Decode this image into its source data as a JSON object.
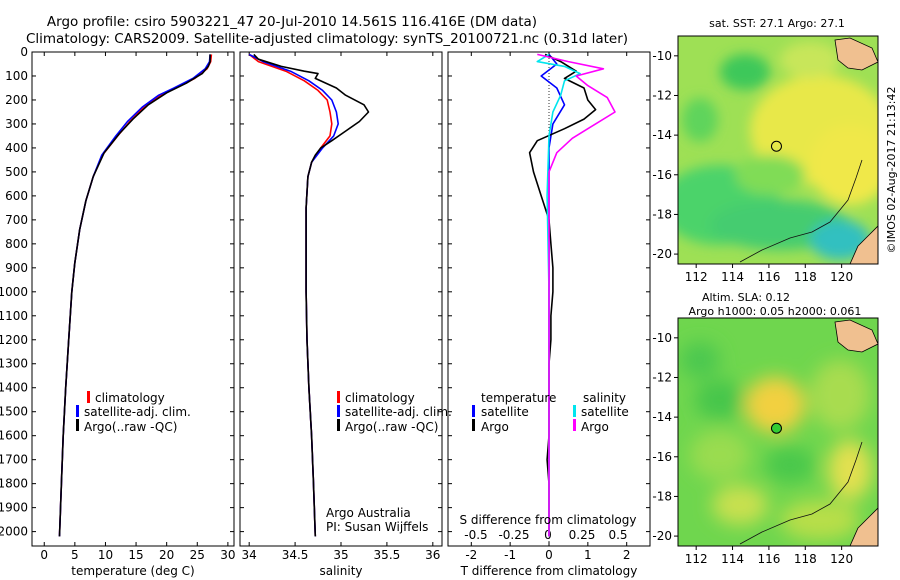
{
  "header": {
    "line1": "Argo profile: csiro 5903221_47 20-Jul-2010 14.561S 116.416E (DM data)",
    "line2": "Climatology: CARS2009. Satellite-adjusted climatology: synTS_20100721.nc (0.31d later)"
  },
  "depth_ticks": [
    0,
    100,
    200,
    300,
    400,
    500,
    600,
    700,
    800,
    900,
    1000,
    1100,
    1200,
    1300,
    1400,
    1500,
    1600,
    1700,
    1800,
    1900,
    2000
  ],
  "colors": {
    "climatology": "#ff0000",
    "satellite_adj": "#0000ff",
    "argo": "#000000",
    "satellite_s": "#00e5ee",
    "argo_s": "#ff00ff"
  },
  "chart_data": [
    {
      "type": "line",
      "id": "temperature",
      "xlabel": "temperature (deg C)",
      "ylabel": "",
      "xlim": [
        -2,
        31
      ],
      "ylim": [
        2060,
        0
      ],
      "xticks": [
        0,
        5,
        10,
        15,
        20,
        25,
        30
      ],
      "legend": [
        "climatology",
        "satellite-adj. clim.",
        "Argo(..raw -QC)"
      ],
      "series": [
        {
          "name": "climatology",
          "color": "#ff0000",
          "points": [
            [
              27.3,
              10
            ],
            [
              27.2,
              40
            ],
            [
              26.6,
              70
            ],
            [
              24.6,
              110
            ],
            [
              21.5,
              150
            ],
            [
              19.0,
              180
            ],
            [
              16.3,
              230
            ],
            [
              14.0,
              290
            ],
            [
              12.0,
              350
            ],
            [
              9.5,
              430
            ],
            [
              8.0,
              520
            ],
            [
              6.8,
              620
            ],
            [
              5.8,
              740
            ],
            [
              5.0,
              880
            ],
            [
              4.5,
              1000
            ],
            [
              4.0,
              1200
            ],
            [
              3.5,
              1400
            ],
            [
              3.1,
              1600
            ],
            [
              2.8,
              1800
            ],
            [
              2.5,
              2020
            ]
          ]
        },
        {
          "name": "satellite-adj. clim.",
          "color": "#0000ff",
          "points": [
            [
              27.1,
              10
            ],
            [
              27.0,
              40
            ],
            [
              26.3,
              70
            ],
            [
              24.3,
              110
            ],
            [
              21.2,
              150
            ],
            [
              18.7,
              180
            ],
            [
              16.0,
              230
            ],
            [
              13.6,
              290
            ],
            [
              11.7,
              350
            ],
            [
              9.4,
              430
            ],
            [
              8.0,
              520
            ],
            [
              6.8,
              620
            ],
            [
              5.8,
              740
            ],
            [
              5.0,
              880
            ],
            [
              4.5,
              1000
            ],
            [
              4.0,
              1200
            ],
            [
              3.5,
              1400
            ],
            [
              3.1,
              1600
            ],
            [
              2.8,
              1800
            ],
            [
              2.5,
              2020
            ]
          ]
        },
        {
          "name": "Argo(..raw -QC)",
          "color": "#000000",
          "points": [
            [
              27.1,
              10
            ],
            [
              27.1,
              40
            ],
            [
              26.8,
              60
            ],
            [
              25.8,
              90
            ],
            [
              23.2,
              130
            ],
            [
              20.0,
              170
            ],
            [
              17.0,
              220
            ],
            [
              14.5,
              280
            ],
            [
              12.3,
              340
            ],
            [
              9.8,
              420
            ],
            [
              8.0,
              520
            ],
            [
              6.8,
              620
            ],
            [
              5.8,
              740
            ],
            [
              5.0,
              880
            ],
            [
              4.5,
              1000
            ],
            [
              4.0,
              1200
            ],
            [
              3.5,
              1400
            ],
            [
              3.1,
              1600
            ],
            [
              2.8,
              1800
            ],
            [
              2.5,
              2020
            ]
          ]
        }
      ]
    },
    {
      "type": "line",
      "id": "salinity",
      "xlabel": "salinity",
      "xlim": [
        33.9,
        36.1
      ],
      "ylim": [
        2060,
        0
      ],
      "xticks": [
        34,
        34.5,
        35,
        35.5,
        36
      ],
      "legend": [
        "climatology",
        "satellite-adj. clim.",
        "Argo(..raw -QC)"
      ],
      "annotation": [
        "Argo Australia",
        "PI: Susan Wijffels"
      ],
      "series": [
        {
          "name": "climatology",
          "color": "#ff0000",
          "points": [
            [
              34.0,
              10
            ],
            [
              34.1,
              40
            ],
            [
              34.4,
              80
            ],
            [
              34.6,
              120
            ],
            [
              34.75,
              160
            ],
            [
              34.85,
              200
            ],
            [
              34.88,
              250
            ],
            [
              34.9,
              300
            ],
            [
              34.88,
              350
            ],
            [
              34.78,
              400
            ],
            [
              34.68,
              460
            ],
            [
              34.64,
              520
            ],
            [
              34.62,
              650
            ],
            [
              34.62,
              800
            ],
            [
              34.62,
              1000
            ],
            [
              34.63,
              1200
            ],
            [
              34.65,
              1400
            ],
            [
              34.68,
              1600
            ],
            [
              34.7,
              1800
            ],
            [
              34.72,
              2020
            ]
          ]
        },
        {
          "name": "satellite-adj. clim.",
          "color": "#0000ff",
          "points": [
            [
              34.0,
              10
            ],
            [
              34.15,
              40
            ],
            [
              34.45,
              80
            ],
            [
              34.65,
              120
            ],
            [
              34.8,
              160
            ],
            [
              34.9,
              200
            ],
            [
              34.95,
              250
            ],
            [
              34.97,
              300
            ],
            [
              34.92,
              350
            ],
            [
              34.8,
              400
            ],
            [
              34.68,
              460
            ],
            [
              34.64,
              520
            ],
            [
              34.62,
              650
            ],
            [
              34.62,
              800
            ],
            [
              34.62,
              1000
            ],
            [
              34.63,
              1200
            ],
            [
              34.65,
              1400
            ],
            [
              34.68,
              1600
            ],
            [
              34.7,
              1800
            ],
            [
              34.72,
              2020
            ]
          ]
        },
        {
          "name": "Argo(..raw -QC)",
          "color": "#000000",
          "points": [
            [
              34.05,
              10
            ],
            [
              34.1,
              30
            ],
            [
              34.35,
              60
            ],
            [
              34.6,
              80
            ],
            [
              34.75,
              90
            ],
            [
              34.72,
              110
            ],
            [
              34.95,
              150
            ],
            [
              35.05,
              180
            ],
            [
              35.25,
              220
            ],
            [
              35.3,
              250
            ],
            [
              35.2,
              290
            ],
            [
              35.05,
              330
            ],
            [
              34.9,
              370
            ],
            [
              34.78,
              400
            ],
            [
              34.72,
              430
            ],
            [
              34.68,
              460
            ],
            [
              34.64,
              520
            ],
            [
              34.62,
              650
            ],
            [
              34.62,
              800
            ],
            [
              34.62,
              1000
            ],
            [
              34.63,
              1200
            ],
            [
              34.65,
              1400
            ],
            [
              34.68,
              1600
            ],
            [
              34.7,
              1800
            ],
            [
              34.72,
              2020
            ]
          ]
        }
      ]
    },
    {
      "type": "line",
      "id": "difference",
      "xlabel": "T difference from climatology",
      "xlabel_top": "S difference from climatology",
      "xlim": [
        -2.6,
        2.6
      ],
      "ylim": [
        2060,
        0
      ],
      "xticks": [
        -2,
        -1,
        0,
        1,
        2
      ],
      "xticks_s": [
        "-0.5",
        "-0.25",
        "0",
        "0.25",
        "0.5"
      ],
      "legend": {
        "temperature_title": "temperature",
        "salinity_title": "salinity",
        "satellite": "satellite",
        "argo": "Argo"
      },
      "series": [
        {
          "name": "temperature satellite",
          "color": "#0000ff",
          "points": [
            [
              0,
              10
            ],
            [
              0.2,
              50
            ],
            [
              -0.2,
              100
            ],
            [
              0.2,
              150
            ],
            [
              0.4,
              220
            ],
            [
              0.1,
              300
            ],
            [
              0,
              400
            ],
            [
              0,
              600
            ],
            [
              0,
              1000
            ],
            [
              0,
              1500
            ],
            [
              0,
              2020
            ]
          ]
        },
        {
          "name": "temperature Argo",
          "color": "#000000",
          "points": [
            [
              -0.1,
              10
            ],
            [
              0.3,
              40
            ],
            [
              0.7,
              80
            ],
            [
              0.4,
              110
            ],
            [
              0.9,
              150
            ],
            [
              1.0,
              200
            ],
            [
              1.2,
              240
            ],
            [
              0.9,
              280
            ],
            [
              0.4,
              320
            ],
            [
              -0.3,
              370
            ],
            [
              -0.5,
              420
            ],
            [
              -0.4,
              500
            ],
            [
              -0.2,
              600
            ],
            [
              0,
              700
            ],
            [
              0.05,
              800
            ],
            [
              0.1,
              900
            ],
            [
              0.1,
              1000
            ],
            [
              0.05,
              1100
            ],
            [
              0.05,
              1200
            ],
            [
              0,
              1300
            ],
            [
              0,
              1400
            ],
            [
              0,
              1500
            ],
            [
              0,
              1600
            ],
            [
              -0.05,
              1700
            ],
            [
              0,
              1800
            ],
            [
              0,
              1900
            ],
            [
              0,
              2020
            ]
          ]
        },
        {
          "name": "salinity satellite",
          "color": "#00e5ee",
          "points": [
            [
              0,
              10
            ],
            [
              -0.3,
              40
            ],
            [
              0.4,
              60
            ],
            [
              0.8,
              90
            ],
            [
              0.4,
              120
            ],
            [
              0.3,
              180
            ],
            [
              0.1,
              250
            ],
            [
              0,
              350
            ],
            [
              -0.05,
              600
            ],
            [
              0,
              1000
            ],
            [
              0,
              1500
            ],
            [
              0,
              2020
            ]
          ]
        },
        {
          "name": "salinity Argo",
          "color": "#ff00ff",
          "points": [
            [
              -0.3,
              10
            ],
            [
              0.5,
              40
            ],
            [
              1.4,
              70
            ],
            [
              0.7,
              100
            ],
            [
              1.0,
              140
            ],
            [
              1.5,
              190
            ],
            [
              1.7,
              250
            ],
            [
              1.2,
              300
            ],
            [
              0.6,
              360
            ],
            [
              0.2,
              420
            ],
            [
              0,
              500
            ],
            [
              0,
              1000
            ],
            [
              0,
              1500
            ],
            [
              0,
              2020
            ]
          ]
        }
      ]
    }
  ],
  "maps": [
    {
      "id": "sst",
      "title": "sat. SST: 27.1 Argo: 27.1",
      "xticks": [
        "112",
        "114",
        "116",
        "118",
        "120"
      ],
      "yticks": [
        "-10",
        "-12",
        "-14",
        "-16",
        "-18",
        "-20"
      ],
      "marker_lon": 116.416,
      "marker_lat": -14.561,
      "marker_fill": "none"
    },
    {
      "id": "sla",
      "title1": "Altim. SLA: 0.12",
      "title2": "Argo h1000: 0.05 h2000: 0.061",
      "xticks": [
        "112",
        "114",
        "116",
        "118",
        "120"
      ],
      "yticks": [
        "-10",
        "-12",
        "-14",
        "-16",
        "-18",
        "-20"
      ],
      "marker_lon": 116.416,
      "marker_lat": -14.561,
      "marker_fill": "#33cc33"
    }
  ],
  "credit": "©IMOS 02-Aug-2017 21:13:42"
}
